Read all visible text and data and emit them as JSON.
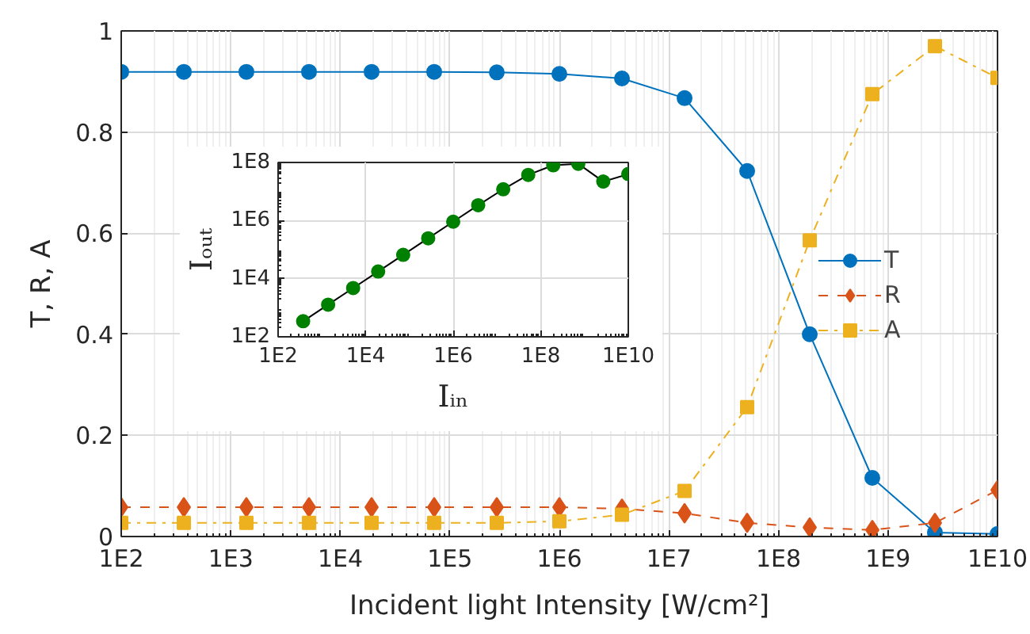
{
  "chart_data": [
    {
      "type": "line",
      "xlabel": "Incident light Intensity [W/cm²]",
      "ylabel": "T, R, A",
      "x": [
        100,
        373,
        1389,
        5179,
        19307,
        71969,
        268270,
        1000000,
        3727594,
        13894955,
        51794747,
        193069773,
        719685673,
        2682695795,
        10000000000
      ],
      "series": [
        {
          "name": "T",
          "color": "#0072bd",
          "marker": "circle",
          "line_style": "solid",
          "values": [
            0.919,
            0.919,
            0.919,
            0.919,
            0.919,
            0.919,
            0.918,
            0.915,
            0.906,
            0.867,
            0.723,
            0.4,
            0.116,
            0.008,
            0.005
          ]
        },
        {
          "name": "R",
          "color": "#d95319",
          "marker": "diamond",
          "line_style": "dashed",
          "values": [
            0.058,
            0.058,
            0.058,
            0.058,
            0.058,
            0.058,
            0.058,
            0.058,
            0.055,
            0.046,
            0.027,
            0.018,
            0.013,
            0.027,
            0.092
          ]
        },
        {
          "name": "A",
          "color": "#edb120",
          "marker": "square",
          "line_style": "dotted",
          "values": [
            0.027,
            0.027,
            0.027,
            0.027,
            0.027,
            0.027,
            0.027,
            0.03,
            0.043,
            0.09,
            0.256,
            0.586,
            0.875,
            0.97,
            0.907
          ]
        }
      ],
      "log": "x",
      "xlim": [
        100,
        10000000000
      ],
      "ylim": [
        0,
        1
      ],
      "xticks": [
        {
          "value": 100,
          "label": "1E2"
        },
        {
          "value": 1000,
          "label": "1E3"
        },
        {
          "value": 10000,
          "label": "1E4"
        },
        {
          "value": 100000,
          "label": "1E5"
        },
        {
          "value": 1000000,
          "label": "1E6"
        },
        {
          "value": 10000000,
          "label": "1E7"
        },
        {
          "value": 100000000,
          "label": "1E8"
        },
        {
          "value": 1000000000,
          "label": "1E9"
        },
        {
          "value": 10000000000,
          "label": "1E10"
        }
      ],
      "yticks": [
        0,
        0.2,
        0.4,
        0.6,
        0.8,
        1
      ],
      "grid": true,
      "legend": "right"
    },
    {
      "type": "line",
      "xlabel": "Iᵢₙ",
      "ylabel": "Iₒᵤₜ",
      "x": [
        373,
        1389,
        5179,
        19307,
        71969,
        268270,
        1000000,
        3727594,
        13894955,
        51794747,
        193069773,
        719685673,
        2682695795,
        10000000000
      ],
      "series": [
        {
          "color": "#008000",
          "marker": "circle",
          "values": [
            343,
            1280,
            4760,
            17700,
            66100,
            246000,
            915000,
            3380000,
            12000000,
            37400000,
            80000000,
            90000000,
            22000000,
            40000000
          ]
        }
      ],
      "log": "xy",
      "xlim": [
        100,
        10000000000
      ],
      "ylim": [
        100,
        100000000
      ],
      "xticks": [
        {
          "value": 100,
          "label": "1E2"
        },
        {
          "value": 10000,
          "label": "1E4"
        },
        {
          "value": 1000000,
          "label": "1E6"
        },
        {
          "value": 100000000,
          "label": "1E8"
        },
        {
          "value": 10000000000,
          "label": "1E10"
        }
      ],
      "yticks": [
        {
          "value": 100,
          "label": "1E2"
        },
        {
          "value": 10000,
          "label": "1E4"
        },
        {
          "value": 1000000,
          "label": "1E6"
        },
        {
          "value": 100000000,
          "label": "1E8"
        }
      ],
      "grid": true,
      "legend": false
    }
  ]
}
